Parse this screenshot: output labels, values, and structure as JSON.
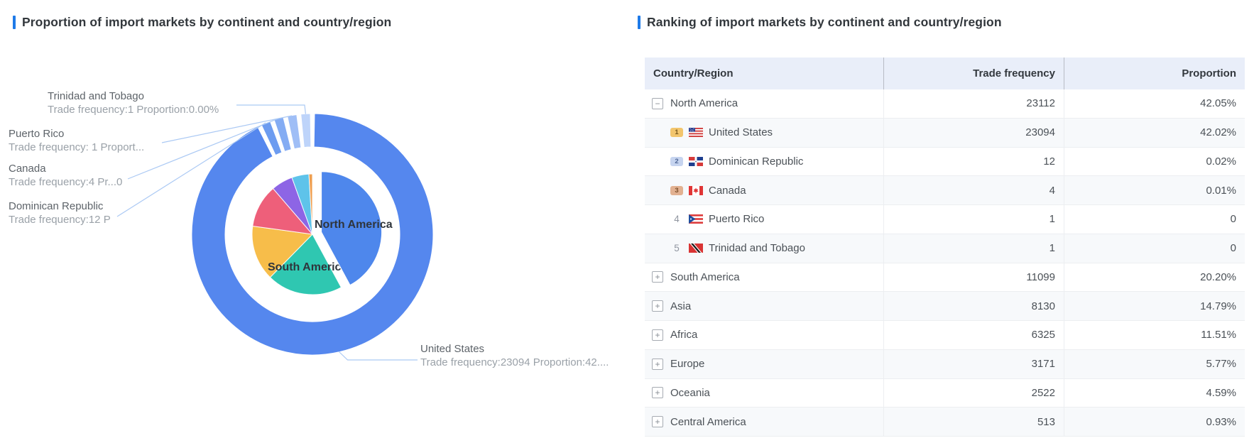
{
  "background": "#ffffff",
  "accent_color": "#1e7ae8",
  "left_panel": {
    "title": "Proportion of import markets by continent and country/region"
  },
  "right_panel": {
    "title": "Ranking of import markets by continent and country/region",
    "columns": [
      "Country/Region",
      "Trade frequency",
      "Proportion"
    ]
  },
  "chart_data": {
    "type": "pie",
    "subtype": "donut-outer-countries-with-inner-continent-pie",
    "title": "Proportion of import markets by continent and country/region",
    "legend_position": "none",
    "inner_series_name": "Continents",
    "continents": [
      {
        "name": "North America",
        "trade_frequency": 23112,
        "proportion_pct": 42.05,
        "color": "#4e87ec",
        "selected": true
      },
      {
        "name": "South America",
        "trade_frequency": 11099,
        "proportion_pct": 20.2,
        "color": "#2fc7b1"
      },
      {
        "name": "Asia",
        "trade_frequency": 8130,
        "proportion_pct": 14.79,
        "color": "#f7bd4a"
      },
      {
        "name": "Africa",
        "trade_frequency": 6325,
        "proportion_pct": 11.51,
        "color": "#ee5f7a"
      },
      {
        "name": "Europe",
        "trade_frequency": 3171,
        "proportion_pct": 5.77,
        "color": "#8d65e5"
      },
      {
        "name": "Oceania",
        "trade_frequency": 2522,
        "proportion_pct": 4.59,
        "color": "#5ec3ea"
      },
      {
        "name": "Central America",
        "trade_frequency": 513,
        "proportion_pct": 0.93,
        "color": "#ef9e4f"
      }
    ],
    "outer_series_name": "North America countries",
    "countries": [
      {
        "name": "United States",
        "trade_frequency": 23094,
        "proportion_pct": 42.02,
        "color": "#5587ee"
      },
      {
        "name": "Dominican Republic",
        "trade_frequency": 12,
        "proportion_pct": 0.02,
        "color": "#6d9cf0"
      },
      {
        "name": "Canada",
        "trade_frequency": 4,
        "proportion_pct": 0.01,
        "color": "#84acf3"
      },
      {
        "name": "Puerto Rico",
        "trade_frequency": 1,
        "proportion_pct": 0,
        "color": "#9fbef6"
      },
      {
        "name": "Trinidad and Tobago",
        "trade_frequency": 1,
        "proportion_pct": 0,
        "color": "#bed4fa"
      }
    ],
    "visible_slice_labels": [
      "North America",
      "South America"
    ],
    "callouts": [
      {
        "name": "Trinidad and Tobago",
        "detail": "Trade frequency:1 Proportion:0.00%"
      },
      {
        "name": "Puerto Rico",
        "detail": "Trade frequency: 1 Proport..."
      },
      {
        "name": "Canada",
        "detail": "Trade frequency:4 Pr...0"
      },
      {
        "name": "Dominican Republic",
        "detail": "Trade frequency:12 P"
      },
      {
        "name": "United States",
        "detail": "Trade frequency:23094 Proportion:42...."
      }
    ]
  },
  "table": {
    "rows": [
      {
        "level": "continent",
        "expand": "expanded",
        "name": "North America",
        "trade_frequency": "23112",
        "proportion": "42.05%"
      },
      {
        "level": "country",
        "rank": "1",
        "flag": "us",
        "name": "United States",
        "trade_frequency": "23094",
        "proportion": "42.02%"
      },
      {
        "level": "country",
        "rank": "2",
        "flag": "do",
        "name": "Dominican Republic",
        "trade_frequency": "12",
        "proportion": "0.02%"
      },
      {
        "level": "country",
        "rank": "3",
        "flag": "ca",
        "name": "Canada",
        "trade_frequency": "4",
        "proportion": "0.01%"
      },
      {
        "level": "country",
        "rank": "4",
        "flag": "pr",
        "name": "Puerto Rico",
        "trade_frequency": "1",
        "proportion": "0"
      },
      {
        "level": "country",
        "rank": "5",
        "flag": "tt",
        "name": "Trinidad and Tobago",
        "trade_frequency": "1",
        "proportion": "0"
      },
      {
        "level": "continent",
        "expand": "collapsed",
        "name": "South America",
        "trade_frequency": "11099",
        "proportion": "20.20%"
      },
      {
        "level": "continent",
        "expand": "collapsed",
        "name": "Asia",
        "trade_frequency": "8130",
        "proportion": "14.79%"
      },
      {
        "level": "continent",
        "expand": "collapsed",
        "name": "Africa",
        "trade_frequency": "6325",
        "proportion": "11.51%"
      },
      {
        "level": "continent",
        "expand": "collapsed",
        "name": "Europe",
        "trade_frequency": "3171",
        "proportion": "5.77%"
      },
      {
        "level": "continent",
        "expand": "collapsed",
        "name": "Oceania",
        "trade_frequency": "2522",
        "proportion": "4.59%"
      },
      {
        "level": "continent",
        "expand": "collapsed",
        "name": "Central America",
        "trade_frequency": "513",
        "proportion": "0.93%"
      }
    ]
  }
}
